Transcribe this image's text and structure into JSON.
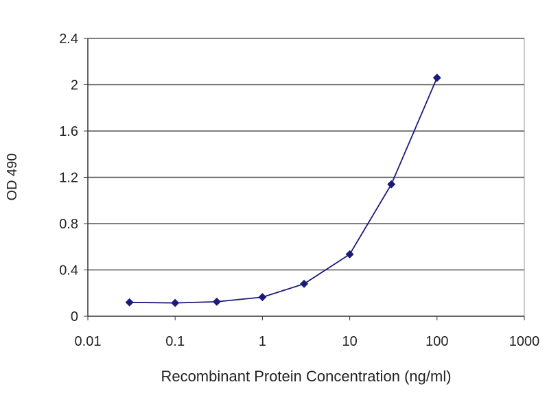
{
  "chart_data": {
    "type": "line",
    "title": "",
    "xlabel": "Recombinant Protein Concentration (ng/ml)",
    "ylabel": "OD 490",
    "x_scale": "log",
    "xlim": [
      0.01,
      1000
    ],
    "ylim": [
      0,
      2.4
    ],
    "x_ticks": [
      "0.01",
      "0.1",
      "1",
      "10",
      "100",
      "1000"
    ],
    "y_ticks": [
      "0",
      "0.4",
      "0.8",
      "1.2",
      "1.6",
      "2",
      "2.4"
    ],
    "grid": "horizontal",
    "legend": "none",
    "series": [
      {
        "color": "#1a1a7a",
        "x": [
          0.03,
          0.1,
          0.3,
          1,
          3,
          10,
          30,
          100
        ],
        "y": [
          0.12,
          0.115,
          0.125,
          0.165,
          0.28,
          0.535,
          1.14,
          2.06
        ]
      }
    ]
  }
}
